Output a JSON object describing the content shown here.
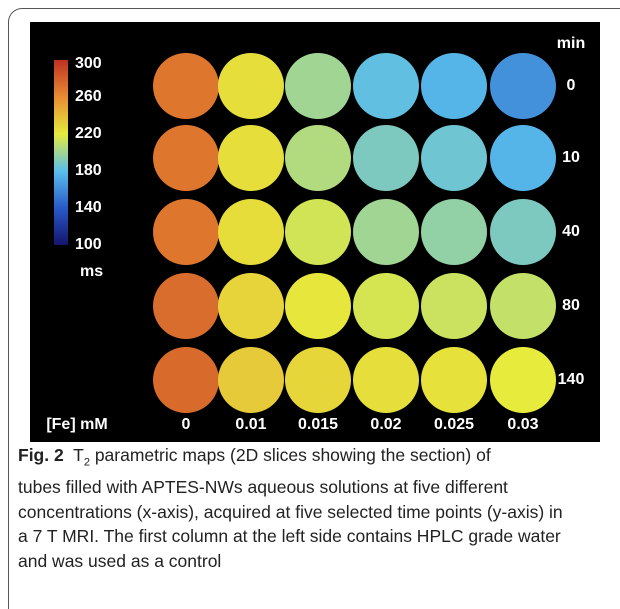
{
  "figure": {
    "colorbar": {
      "ticks": [
        300,
        260,
        220,
        180,
        140,
        100
      ],
      "range": [
        100,
        300
      ],
      "unit": "ms"
    },
    "row_header": "min",
    "times": [
      "0",
      "10",
      "40",
      "80",
      "140"
    ],
    "col_header": "[Fe] mM",
    "concentrations": [
      "0",
      "0.01",
      "0.015",
      "0.02",
      "0.025",
      "0.03"
    ],
    "t2_maps": [
      [
        270,
        225,
        200,
        182,
        176,
        162
      ],
      [
        270,
        225,
        205,
        190,
        186,
        176
      ],
      [
        270,
        226,
        214,
        200,
        196,
        190
      ],
      [
        274,
        230,
        222,
        215,
        212,
        210
      ],
      [
        275,
        234,
        229,
        225,
        224,
        220
      ]
    ]
  },
  "caption": {
    "label": "Fig. 2",
    "symbol": "T",
    "subscript": "2",
    "lines": [
      "parametric maps (2D slices showing the section) of",
      "tubes filled with APTES-NWs aqueous solutions at five different",
      "concentrations (x-axis), acquired at five selected time points (y-axis) in",
      "a 7 T MRI. The first column at the left side contains HPLC grade water",
      "and was used as a control"
    ]
  }
}
